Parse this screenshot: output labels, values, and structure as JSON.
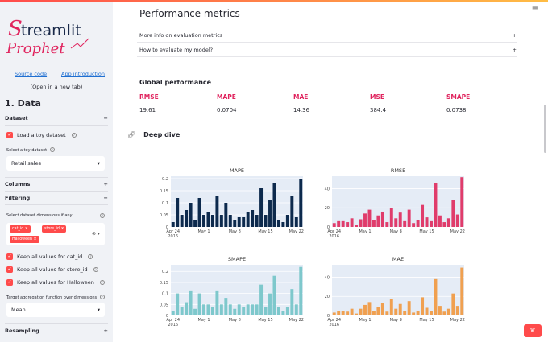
{
  "app": {
    "logo_text_top": "Streamlit",
    "logo_text_bottom": "Prophet",
    "links": {
      "source": "Source code",
      "intro": "App introduction",
      "note": "(Open in a new tab)"
    }
  },
  "sidebar": {
    "section_title": "1. Data",
    "dataset": {
      "label": "Dataset",
      "toggle": "−"
    },
    "load_toy": "Load a toy dataset",
    "select_label": "Select a toy dataset",
    "select_value": "Retail sales",
    "columns": {
      "label": "Columns",
      "toggle": "+"
    },
    "filtering": {
      "label": "Filtering",
      "toggle": "−"
    },
    "dims_label": "Select dataset dimensions if any",
    "tags": [
      "cat_id",
      "store_id",
      "Halloween"
    ],
    "keep": [
      "Keep all values for cat_id",
      "Keep all values for store_id",
      "Keep all values for Halloween"
    ],
    "agg_label": "Target aggregation function over dimensions",
    "agg_value": "Mean",
    "resampling": {
      "label": "Resampling",
      "toggle": "+"
    }
  },
  "main": {
    "title": "Performance metrics",
    "expanders": [
      {
        "label": "More info on evaluation metrics",
        "toggle": "+"
      },
      {
        "label": "How to evaluate my model?",
        "toggle": "+"
      }
    ],
    "global_title": "Global performance",
    "metrics": [
      {
        "label": "RMSE",
        "value": "19.61"
      },
      {
        "label": "MAPE",
        "value": "0.0704"
      },
      {
        "label": "MAE",
        "value": "14.36"
      },
      {
        "label": "MSE",
        "value": "384.4"
      },
      {
        "label": "SMAPE",
        "value": "0.0738"
      }
    ],
    "deep_dive": "Deep dive",
    "menu_icon": "hamburger-icon",
    "link_icon": "link-icon"
  },
  "colors": {
    "accent": "#ff4b4b",
    "metric": "#e0245e",
    "mape": "#0d2a4d",
    "rmse": "#e03c6b",
    "smape": "#7ec8cc",
    "mae": "#f0a050"
  },
  "chart_data": [
    {
      "type": "bar",
      "title": "MAPE",
      "color": "#0d2a4d",
      "x_ticks": [
        "Apr 24\n2016",
        "May 1",
        "May 8",
        "May 15",
        "May 22"
      ],
      "y_ticks": [
        0,
        0.05,
        0.1,
        0.15,
        0.2
      ],
      "ylim": [
        0,
        0.21
      ],
      "values": [
        0.02,
        0.12,
        0.05,
        0.07,
        0.1,
        0.03,
        0.12,
        0.05,
        0.06,
        0.05,
        0.13,
        0.05,
        0.1,
        0.05,
        0.03,
        0.04,
        0.04,
        0.06,
        0.07,
        0.05,
        0.16,
        0.05,
        0.11,
        0.18,
        0.03,
        0.02,
        0.05,
        0.13,
        0.04,
        0.2
      ]
    },
    {
      "type": "bar",
      "title": "RMSE",
      "color": "#e03c6b",
      "x_ticks": [
        "Apr 24\n2016",
        "May 1",
        "May 8",
        "May 15",
        "May 22"
      ],
      "y_ticks": [
        0,
        20,
        40
      ],
      "ylim": [
        0,
        53
      ],
      "values": [
        4,
        6,
        6,
        5,
        9,
        2,
        8,
        14,
        18,
        7,
        12,
        16,
        5,
        20,
        9,
        15,
        6,
        18,
        4,
        7,
        23,
        10,
        6,
        46,
        12,
        5,
        9,
        28,
        13,
        52
      ]
    },
    {
      "type": "bar",
      "title": "SMAPE",
      "color": "#7ec8cc",
      "x_ticks": [
        "Apr 24\n2016",
        "May 1",
        "May 8",
        "May 15",
        "May 22"
      ],
      "y_ticks": [
        0,
        0.05,
        0.1,
        0.15,
        0.2
      ],
      "ylim": [
        0,
        0.23
      ],
      "values": [
        0.02,
        0.1,
        0.04,
        0.06,
        0.11,
        0.03,
        0.1,
        0.05,
        0.05,
        0.04,
        0.11,
        0.05,
        0.08,
        0.05,
        0.03,
        0.05,
        0.04,
        0.05,
        0.05,
        0.05,
        0.14,
        0.04,
        0.1,
        0.18,
        0.04,
        0.02,
        0.04,
        0.12,
        0.05,
        0.22
      ]
    },
    {
      "type": "bar",
      "title": "MAE",
      "color": "#f0a050",
      "x_ticks": [
        "Apr 24\n2016",
        "May 1",
        "May 8",
        "May 15",
        "May 22"
      ],
      "y_ticks": [
        0,
        20,
        40
      ],
      "ylim": [
        0,
        53
      ],
      "values": [
        3,
        5,
        5,
        4,
        7,
        2,
        7,
        11,
        14,
        5,
        9,
        13,
        4,
        17,
        7,
        12,
        5,
        15,
        3,
        5,
        19,
        8,
        5,
        38,
        10,
        4,
        7,
        23,
        10,
        50
      ]
    }
  ]
}
